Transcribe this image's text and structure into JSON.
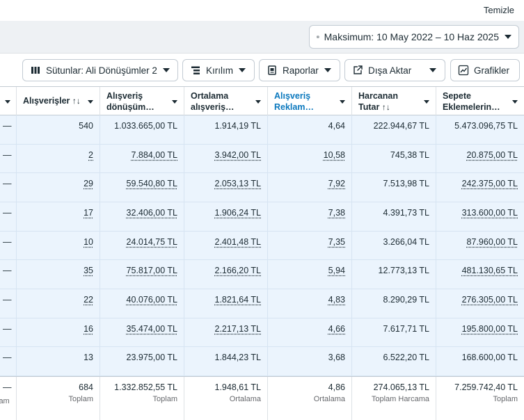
{
  "top": {
    "clear_label": "Temizle"
  },
  "date_range": {
    "label": "Maksimum: 10 May 2022 – 10 Haz 2025",
    "icon": "calendar-icon"
  },
  "toolbar": {
    "columns_label": "Sütunlar: Ali Dönüşümler 2",
    "breakdown_label": "Kırılım",
    "reports_label": "Raporlar",
    "export_label": "Dışa Aktar",
    "charts_label": "Grafikler"
  },
  "table": {
    "headers": [
      {
        "line1": "Alışverişler",
        "line2": "",
        "sort": "↑↓"
      },
      {
        "line1": "Alışveriş",
        "line2": "dönüşüm…",
        "sort": ""
      },
      {
        "line1": "Ortalama",
        "line2": "alışveriş…",
        "sort": ""
      },
      {
        "line1": "Alışveriş",
        "line2": "Reklam…",
        "sort": ""
      },
      {
        "line1": "Harcanan",
        "line2": "Tutar",
        "sort": "↑↓"
      },
      {
        "line1": "Sepete",
        "line2": "Eklemelerin…",
        "sort": ""
      }
    ],
    "rows": [
      {
        "leading": "—",
        "cells": [
          "540",
          "1.033.665,00 TL",
          "1.914,19 TL",
          "4,64",
          "222.944,67 TL",
          "5.473.096,75 TL"
        ]
      },
      {
        "leading": "—",
        "cells": [
          "2",
          "7.884,00 TL",
          "3.942,00 TL",
          "10,58",
          "745,38 TL",
          "20.875,00 TL"
        ]
      },
      {
        "leading": "—",
        "cells": [
          "29",
          "59.540,80 TL",
          "2.053,13 TL",
          "7,92",
          "7.513,98 TL",
          "242.375,00 TL"
        ]
      },
      {
        "leading": "—",
        "cells": [
          "17",
          "32.406,00 TL",
          "1.906,24 TL",
          "7,38",
          "4.391,73 TL",
          "313.600,00 TL"
        ]
      },
      {
        "leading": "—",
        "cells": [
          "10",
          "24.014,75 TL",
          "2.401,48 TL",
          "7,35",
          "3.266,04 TL",
          "87.960,00 TL"
        ]
      },
      {
        "leading": "—",
        "cells": [
          "35",
          "75.817,00 TL",
          "2.166,20 TL",
          "5,94",
          "12.773,13 TL",
          "481.130,65 TL"
        ]
      },
      {
        "leading": "—",
        "cells": [
          "22",
          "40.076,00 TL",
          "1.821,64 TL",
          "4,83",
          "8.290,29 TL",
          "276.305,00 TL"
        ]
      },
      {
        "leading": "—",
        "cells": [
          "16",
          "35.474,00 TL",
          "2.217,13 TL",
          "4,66",
          "7.617,71 TL",
          "195.800,00 TL"
        ]
      },
      {
        "leading": "—",
        "cells": [
          "13",
          "23.975,00 TL",
          "1.844,23 TL",
          "3,68",
          "6.522,20 TL",
          "168.600,00 TL"
        ]
      }
    ],
    "totals": {
      "leading": "—",
      "leading_label": "lam",
      "cells": [
        {
          "value": "684",
          "label": "Toplam"
        },
        {
          "value": "1.332.852,55 TL",
          "label": "Toplam"
        },
        {
          "value": "1.948,61 TL",
          "label": "Ortalama"
        },
        {
          "value": "4,86",
          "label": "Ortalama"
        },
        {
          "value": "274.065,13 TL",
          "label": "Toplam Harcama"
        },
        {
          "value": "7.259.742,40 TL",
          "label": "Toplam"
        }
      ]
    }
  }
}
